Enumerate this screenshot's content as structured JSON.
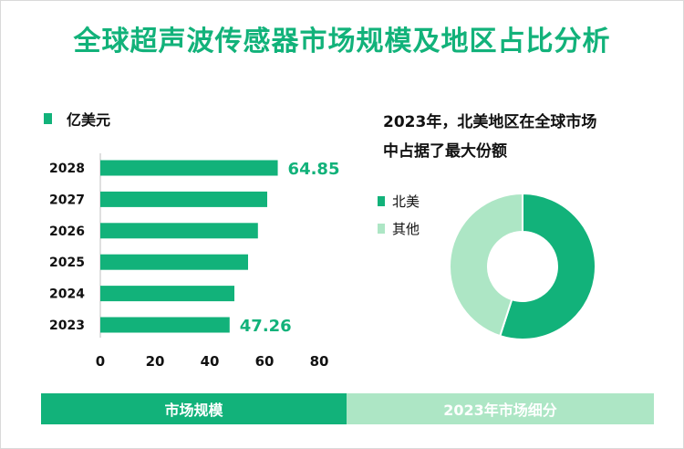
{
  "title": "全球超声波传感器市场规模及地区占比分析",
  "colors": {
    "primary": "#12b27a",
    "light": "#ade6c5"
  },
  "chart_data": [
    {
      "type": "bar",
      "orientation": "horizontal",
      "legend": "亿美元",
      "categories": [
        "2028",
        "2027",
        "2026",
        "2025",
        "2024",
        "2023"
      ],
      "values": [
        64.85,
        61.0,
        57.6,
        54.0,
        49.0,
        47.26
      ],
      "data_labels": [
        {
          "category": "2028",
          "text": "64.85"
        },
        {
          "category": "2023",
          "text": "47.26"
        }
      ],
      "xlim": [
        0,
        80
      ],
      "xticks": [
        "0",
        "20",
        "40",
        "60",
        "80"
      ],
      "grid": false
    },
    {
      "type": "pie",
      "variant": "donut",
      "title": "2023年，北美地区在全球市场中占据了最大份额",
      "title_lines": [
        "2023年，北美地区在全球市场",
        "中占据了最大份额"
      ],
      "labels": [
        "北美",
        "其他"
      ],
      "values": [
        55,
        45
      ],
      "colors": [
        "#12b27a",
        "#ade6c5"
      ],
      "legend_position": "left"
    }
  ],
  "tabs": {
    "left": "市场规模",
    "right": "2023年市场细分"
  }
}
